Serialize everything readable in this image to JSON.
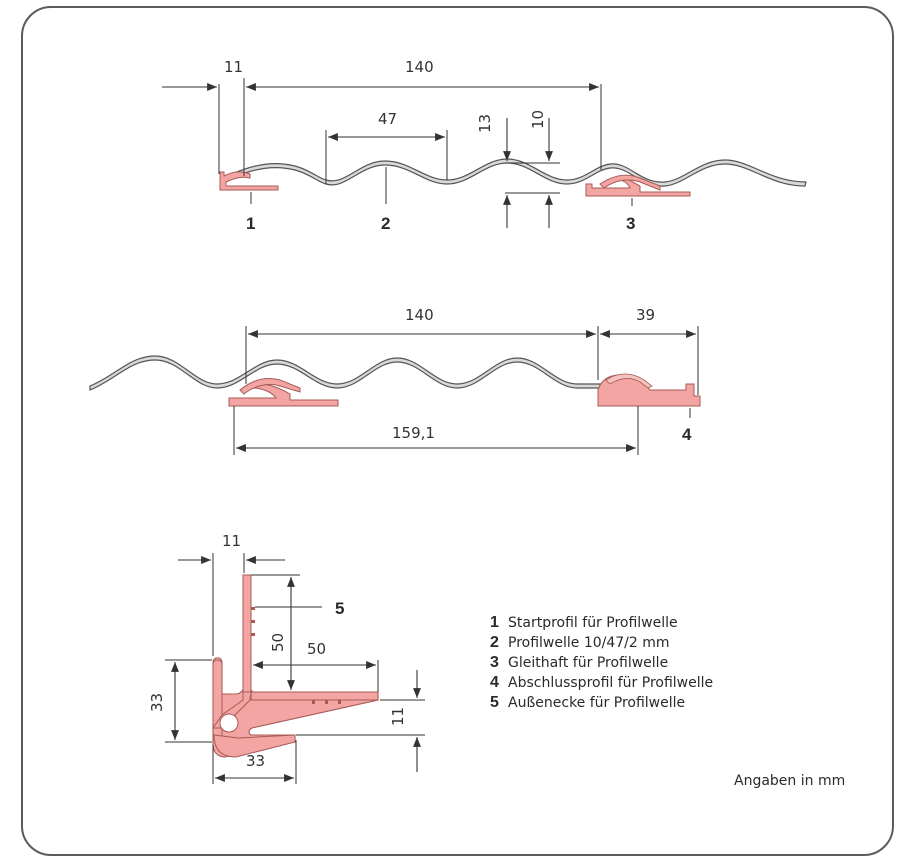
{
  "dimensions": {
    "d11_top": "11",
    "d140_top": "140",
    "d47": "47",
    "d13": "13",
    "d10": "10",
    "d140_mid": "140",
    "d39": "39",
    "d159": "159,1",
    "d11_corner": "11",
    "d50_vert": "50",
    "d50_horiz": "50",
    "d33_vert": "33",
    "d33_horiz": "33",
    "d11_right": "11"
  },
  "callouts": {
    "c1": "1",
    "c2": "2",
    "c3": "3",
    "c4": "4",
    "c5": "5"
  },
  "legend": [
    {
      "num": "1",
      "text": "Startprofil für Profilwelle"
    },
    {
      "num": "2",
      "text": "Profilwelle 10/47/2 mm"
    },
    {
      "num": "3",
      "text": "Gleithaft für Profilwelle"
    },
    {
      "num": "4",
      "text": "Abschlussprofil für Profilwelle"
    },
    {
      "num": "5",
      "text": "Außenecke für Profilwelle"
    }
  ],
  "units_note": "Angaben in mm",
  "colors": {
    "profile_fill": "#f2a5a2",
    "profile_stroke": "#a85a55",
    "sheet_fill": "#d9d9d9",
    "line": "#333333"
  }
}
